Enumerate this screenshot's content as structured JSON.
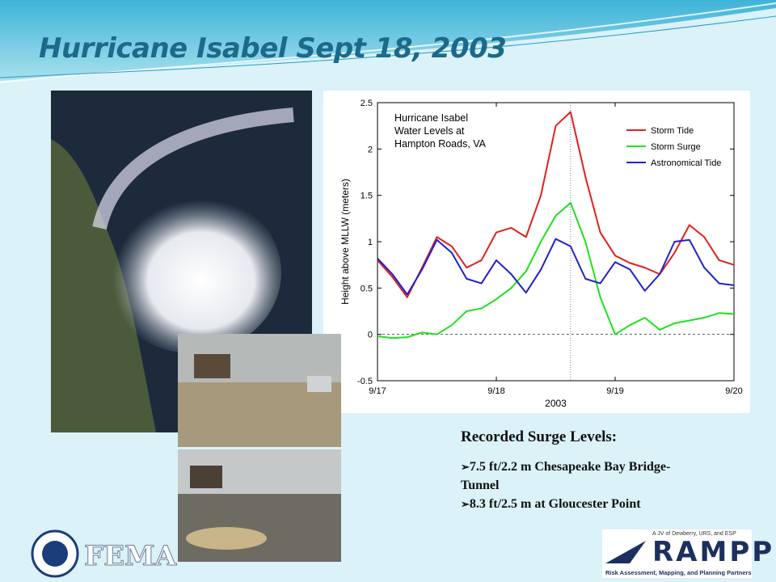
{
  "slide": {
    "title": "Hurricane Isabel Sept 18, 2003",
    "notes_heading": "Recorded Surge Levels:",
    "bullets": [
      "7.5 ft/2.2 m Chesapeake Bay Bridge-Tunnel",
      "8.3 ft/2.5 m at Gloucester Point"
    ],
    "logo_left": "FEMA",
    "logo_right": {
      "tagline": "A JV of Dewberry, URS, and ESP",
      "name": "RAMPP",
      "subtitle": "Risk Assessment, Mapping, and Planning Partners"
    }
  },
  "chart_data": {
    "type": "line",
    "title_lines": [
      "Hurricane Isabel",
      "Water Levels at",
      "Hampton Roads, VA"
    ],
    "xlabel": "2003",
    "ylabel": "Height above MLLW (meters)",
    "x": [
      17,
      17.125,
      17.25,
      17.375,
      17.5,
      17.625,
      17.75,
      17.875,
      18,
      18.125,
      18.25,
      18.375,
      18.5,
      18.625,
      18.75,
      18.875,
      19,
      19.125,
      19.25,
      19.375,
      19.5,
      19.625,
      19.75,
      19.875,
      20
    ],
    "series": [
      {
        "name": "Storm Tide",
        "color": "#e02020",
        "values": [
          0.8,
          0.62,
          0.4,
          0.72,
          1.05,
          0.95,
          0.72,
          0.8,
          1.1,
          1.15,
          1.05,
          1.5,
          2.25,
          2.4,
          1.7,
          1.1,
          0.85,
          0.77,
          0.72,
          0.65,
          0.88,
          1.18,
          1.05,
          0.8,
          0.75
        ]
      },
      {
        "name": "Storm Surge",
        "color": "#20e020",
        "values": [
          -0.02,
          -0.04,
          -0.03,
          0.02,
          0,
          0.1,
          0.25,
          0.28,
          0.38,
          0.5,
          0.68,
          1,
          1.28,
          1.42,
          1,
          0.4,
          0,
          0.1,
          0.18,
          0.05,
          0.12,
          0.15,
          0.18,
          0.23,
          0.22
        ]
      },
      {
        "name": "Astronomical Tide",
        "color": "#2020d0",
        "values": [
          0.82,
          0.65,
          0.43,
          0.7,
          1.02,
          0.88,
          0.6,
          0.55,
          0.8,
          0.65,
          0.45,
          0.7,
          1.03,
          0.95,
          0.6,
          0.55,
          0.78,
          0.7,
          0.47,
          0.65,
          1,
          1.02,
          0.72,
          0.55,
          0.53
        ]
      }
    ],
    "xlim": [
      17,
      20
    ],
    "xticks": [
      {
        "value": 17,
        "label": "9/17"
      },
      {
        "value": 18,
        "label": "9/18"
      },
      {
        "value": 19,
        "label": "9/19"
      },
      {
        "value": 20,
        "label": "9/20"
      }
    ],
    "ylim": [
      -0.5,
      2.5
    ],
    "yticks": [
      -0.5,
      0,
      0.5,
      1,
      1.5,
      2,
      2.5
    ],
    "legend": "upper right"
  }
}
